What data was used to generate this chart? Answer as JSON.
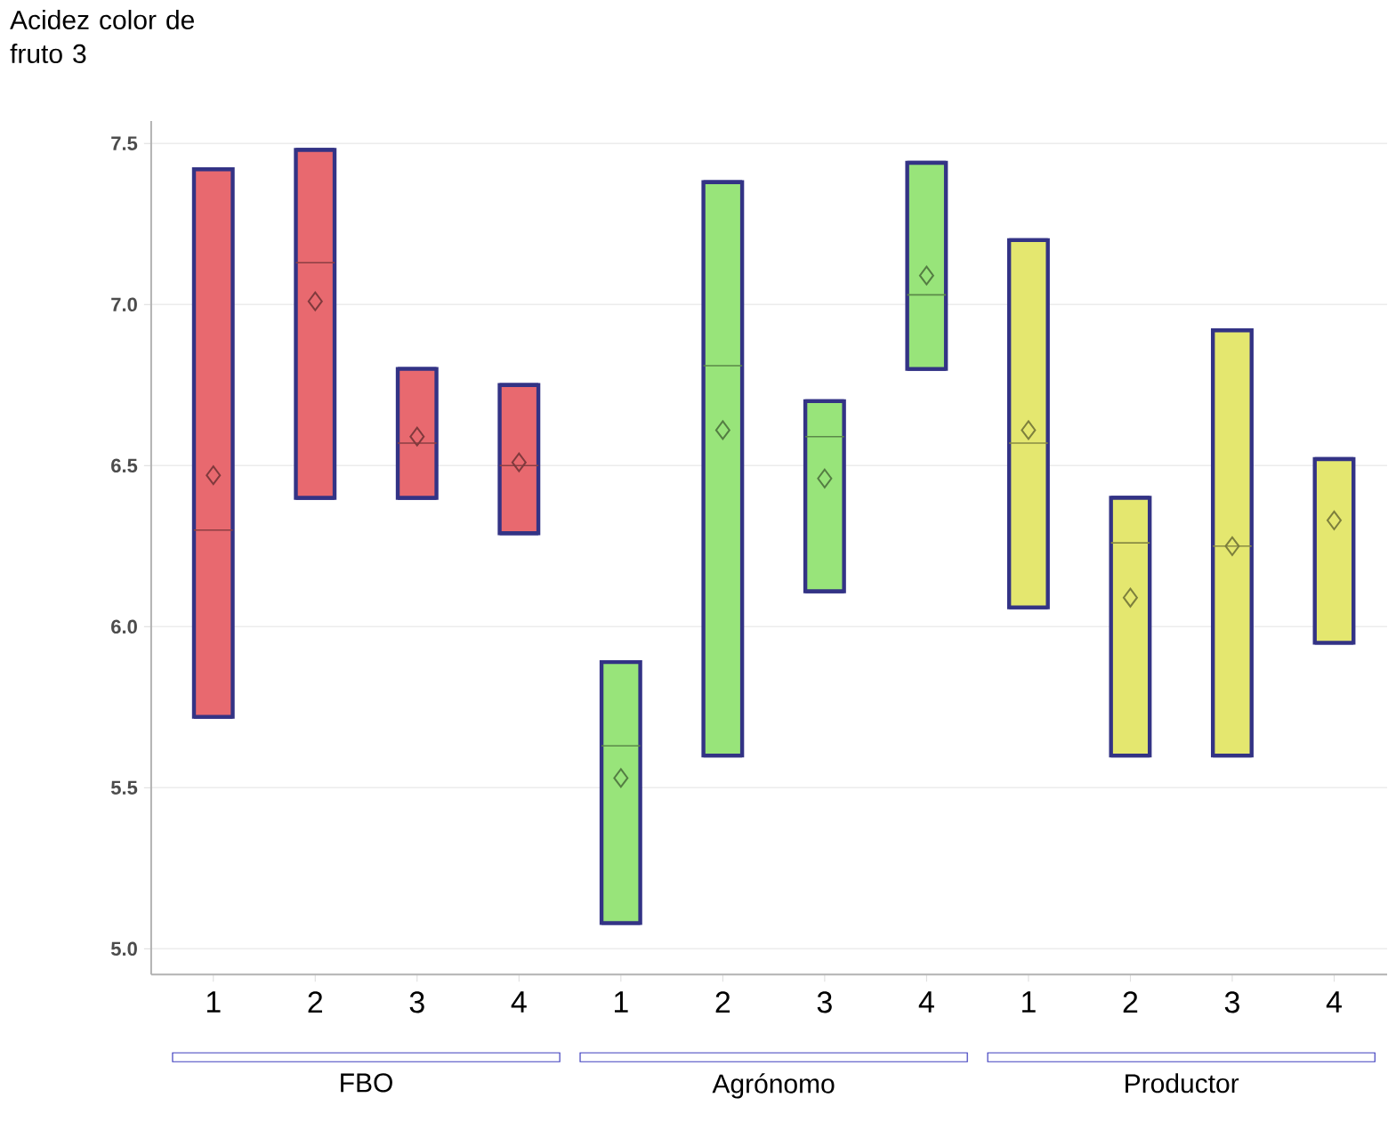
{
  "chart_data": {
    "type": "box",
    "ylabel": "Acidez color de fruto 3",
    "categories": [
      "1",
      "2",
      "3",
      "4",
      "1",
      "2",
      "3",
      "4",
      "1",
      "2",
      "3",
      "4"
    ],
    "ylim": [
      4.92,
      7.57
    ],
    "yticks": [
      {
        "value": 5,
        "label": "5.0"
      },
      {
        "value": 5.5,
        "label": "5.5"
      },
      {
        "value": 6,
        "label": "6.0"
      },
      {
        "value": 6.5,
        "label": "6.5"
      },
      {
        "value": 7,
        "label": "7.0"
      },
      {
        "value": 7.5,
        "label": "7.5"
      }
    ],
    "grid": "y",
    "annotations": [
      "FBO",
      "Agrónomo",
      "Productor"
    ],
    "colors": [
      "#e8696f",
      "#e8696f",
      "#e8696f",
      "#e8696f",
      "#98e47a",
      "#98e47a",
      "#98e47a",
      "#98e47a",
      "#e4e76f",
      "#e4e76f",
      "#e4e76f",
      "#e4e76f"
    ],
    "boxes": [
      {
        "low": 5.72,
        "q1": 5.72,
        "median": 6.3,
        "q3": 7.42,
        "high": 7.42,
        "mean": 6.47
      },
      {
        "low": 6.4,
        "q1": 6.4,
        "median": 7.13,
        "q3": 7.48,
        "high": 7.48,
        "mean": 7.01
      },
      {
        "low": 6.4,
        "q1": 6.4,
        "median": 6.57,
        "q3": 6.8,
        "high": 6.8,
        "mean": 6.59
      },
      {
        "low": 6.29,
        "q1": 6.29,
        "median": 6.5,
        "q3": 6.75,
        "high": 6.75,
        "mean": 6.51
      },
      {
        "low": 5.08,
        "q1": 5.08,
        "median": 5.63,
        "q3": 5.89,
        "high": 5.89,
        "mean": 5.53
      },
      {
        "low": 5.6,
        "q1": 5.6,
        "median": 6.81,
        "q3": 7.38,
        "high": 7.38,
        "mean": 6.61
      },
      {
        "low": 6.11,
        "q1": 6.11,
        "median": 6.59,
        "q3": 6.7,
        "high": 6.7,
        "mean": 6.46
      },
      {
        "low": 6.8,
        "q1": 6.8,
        "median": 7.03,
        "q3": 7.44,
        "high": 7.44,
        "mean": 7.09
      },
      {
        "low": 6.06,
        "q1": 6.06,
        "median": 6.57,
        "q3": 7.2,
        "high": 7.2,
        "mean": 6.61
      },
      {
        "low": 5.6,
        "q1": 5.6,
        "median": 6.26,
        "q3": 6.4,
        "high": 6.4,
        "mean": 6.09
      },
      {
        "low": 5.6,
        "q1": 5.6,
        "median": 6.25,
        "q3": 6.92,
        "high": 6.92,
        "mean": 6.25
      },
      {
        "low": 5.95,
        "q1": 5.95,
        "median": null,
        "q3": 6.52,
        "high": 6.52,
        "mean": 6.33
      }
    ]
  }
}
